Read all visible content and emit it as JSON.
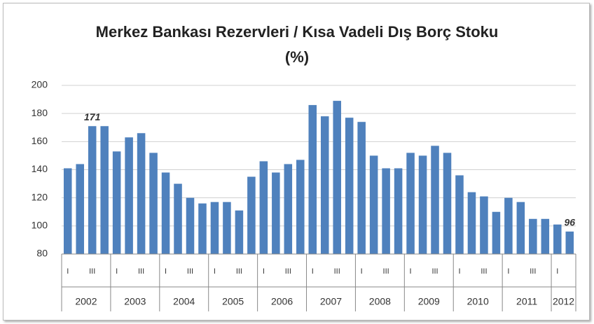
{
  "chart_data": {
    "type": "bar",
    "title": "Merkez Bankası Rezervleri / Kısa Vadeli Dış Borç Stoku (%)",
    "categories": [
      "I",
      null,
      "III",
      null,
      "I",
      null,
      "III",
      null,
      "I",
      null,
      "III",
      null,
      "I",
      null,
      "III",
      null,
      "I",
      null,
      "III",
      null,
      "I",
      null,
      "III",
      null,
      "I",
      null,
      "III",
      null,
      "I",
      null,
      "III",
      null,
      "I",
      null,
      "III",
      null,
      "I",
      null,
      "III",
      null,
      "I",
      null
    ],
    "groups": [
      "2002",
      "2003",
      "2004",
      "2005",
      "2006",
      "2007",
      "2008",
      "2009",
      "2010",
      "2011",
      "2012"
    ],
    "values": [
      141,
      144,
      171,
      171,
      153,
      163,
      166,
      152,
      138,
      130,
      120,
      116,
      117,
      117,
      111,
      135,
      146,
      138,
      144,
      147,
      186,
      178,
      189,
      177,
      174,
      150,
      141,
      141,
      152,
      150,
      157,
      152,
      136,
      124,
      121,
      110,
      120,
      117,
      105,
      105,
      101,
      96
    ],
    "labeled_points": [
      2,
      41
    ],
    "color": "#4f81bd",
    "ylim": [
      80,
      200
    ],
    "yticks": [
      80,
      100,
      120,
      140,
      160,
      180,
      200
    ],
    "grid": true
  }
}
